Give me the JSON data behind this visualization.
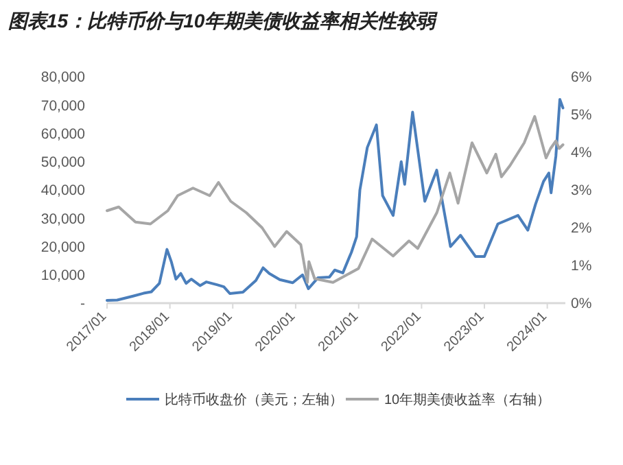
{
  "chart_data": {
    "type": "line",
    "title": "图表15：比特币价与10年期美债收益率相关性较弱",
    "xlim": [
      "2017-01-01",
      "2024-04-15"
    ],
    "xticks": [
      {
        "value": "2017-01-01",
        "label": "2017/01"
      },
      {
        "value": "2018-01-01",
        "label": "2018/01"
      },
      {
        "value": "2019-01-01",
        "label": "2019/01"
      },
      {
        "value": "2020-01-01",
        "label": "2020/01"
      },
      {
        "value": "2021-01-01",
        "label": "2021/01"
      },
      {
        "value": "2022-01-01",
        "label": "2022/01"
      },
      {
        "value": "2023-01-01",
        "label": "2023/01"
      },
      {
        "value": "2024-01-01",
        "label": "2024/01"
      }
    ],
    "ylim": [
      0,
      80000
    ],
    "yticks": [
      {
        "value": 0,
        "label": "-"
      },
      {
        "value": 10000,
        "label": "10,000"
      },
      {
        "value": 20000,
        "label": "20,000"
      },
      {
        "value": 30000,
        "label": "30,000"
      },
      {
        "value": 40000,
        "label": "40,000"
      },
      {
        "value": 50000,
        "label": "50,000"
      },
      {
        "value": 60000,
        "label": "60,000"
      },
      {
        "value": 70000,
        "label": "70,000"
      },
      {
        "value": 80000,
        "label": "80,000"
      }
    ],
    "y2lim": [
      0,
      6
    ],
    "y2ticks": [
      {
        "value": 0,
        "label": "0%"
      },
      {
        "value": 1,
        "label": "1%"
      },
      {
        "value": 2,
        "label": "2%"
      },
      {
        "value": 3,
        "label": "3%"
      },
      {
        "value": 4,
        "label": "4%"
      },
      {
        "value": 5,
        "label": "5%"
      },
      {
        "value": 6,
        "label": "6%"
      }
    ],
    "legend": "bottom",
    "grid": false,
    "series": [
      {
        "name": "比特币收盘价（美元；左轴）",
        "color": "#4a7ebb",
        "x": [
          "2017-01-01",
          "2017-03-01",
          "2017-06-01",
          "2017-08-01",
          "2017-09-15",
          "2017-11-01",
          "2017-12-15",
          "2018-01-10",
          "2018-02-05",
          "2018-03-05",
          "2018-04-05",
          "2018-05-05",
          "2018-06-25",
          "2018-08-01",
          "2018-10-01",
          "2018-11-10",
          "2018-12-15",
          "2019-03-01",
          "2019-05-15",
          "2019-06-26",
          "2019-08-01",
          "2019-10-01",
          "2019-12-15",
          "2020-02-10",
          "2020-03-15",
          "2020-05-10",
          "2020-07-15",
          "2020-08-15",
          "2020-10-01",
          "2020-11-20",
          "2020-12-20",
          "2021-01-08",
          "2021-02-20",
          "2021-04-14",
          "2021-05-20",
          "2021-07-20",
          "2021-09-05",
          "2021-09-25",
          "2021-11-10",
          "2022-01-20",
          "2022-03-30",
          "2022-06-18",
          "2022-08-15",
          "2022-11-10",
          "2023-01-01",
          "2023-03-20",
          "2023-07-15",
          "2023-09-10",
          "2023-10-25",
          "2023-12-10",
          "2024-01-10",
          "2024-01-23",
          "2024-02-20",
          "2024-03-14",
          "2024-04-01"
        ],
        "values": [
          1000,
          1100,
          2500,
          3500,
          4000,
          7000,
          19000,
          14500,
          8500,
          10500,
          7000,
          8500,
          6200,
          7500,
          6500,
          5800,
          3400,
          3900,
          8000,
          12500,
          10500,
          8300,
          7200,
          10000,
          5100,
          9000,
          9200,
          11700,
          10700,
          18000,
          23500,
          40000,
          55000,
          63000,
          38000,
          31000,
          50000,
          42000,
          67500,
          36000,
          47000,
          20000,
          24000,
          16500,
          16500,
          28000,
          31000,
          25800,
          35000,
          43000,
          46000,
          39000,
          52000,
          72000,
          69000
        ]
      },
      {
        "name": "10年期美债收益率（右轴）",
        "color": "#a6a6a6",
        "axis": "y2",
        "x": [
          "2017-01-01",
          "2017-03-10",
          "2017-06-15",
          "2017-09-10",
          "2017-12-20",
          "2018-02-15",
          "2018-05-15",
          "2018-08-20",
          "2018-10-10",
          "2018-12-20",
          "2019-03-20",
          "2019-06-20",
          "2019-09-01",
          "2019-11-10",
          "2020-01-31",
          "2020-03-09",
          "2020-03-18",
          "2020-04-20",
          "2020-08-05",
          "2020-12-31",
          "2021-03-20",
          "2021-07-20",
          "2021-10-20",
          "2021-12-10",
          "2022-03-31",
          "2022-06-14",
          "2022-08-01",
          "2022-10-21",
          "2023-01-15",
          "2023-03-08",
          "2023-04-10",
          "2023-05-30",
          "2023-08-20",
          "2023-10-20",
          "2023-12-25",
          "2024-01-20",
          "2024-02-20",
          "2024-03-10",
          "2024-04-01"
        ],
        "values": [
          2.45,
          2.55,
          2.15,
          2.1,
          2.45,
          2.85,
          3.05,
          2.85,
          3.2,
          2.7,
          2.4,
          2.0,
          1.5,
          1.9,
          1.55,
          0.55,
          1.1,
          0.65,
          0.55,
          0.92,
          1.7,
          1.25,
          1.65,
          1.45,
          2.4,
          3.45,
          2.65,
          4.25,
          3.45,
          3.95,
          3.35,
          3.65,
          4.25,
          4.95,
          3.85,
          4.1,
          4.3,
          4.1,
          4.2
        ]
      }
    ]
  }
}
